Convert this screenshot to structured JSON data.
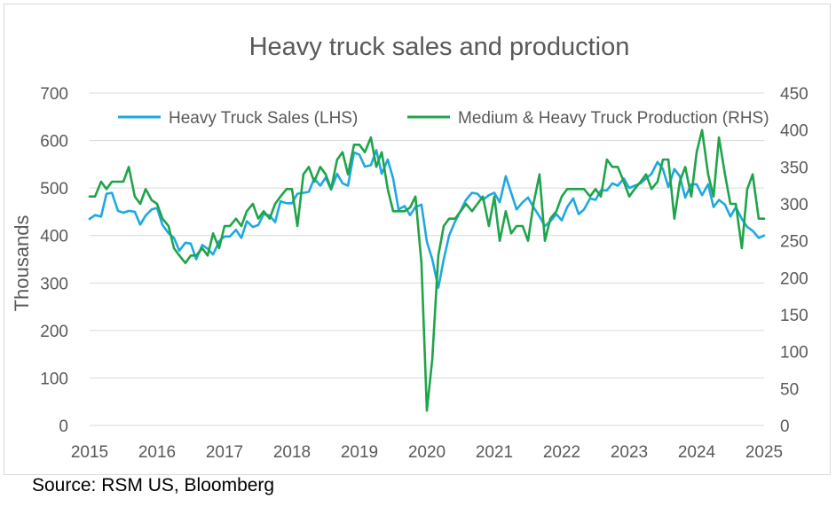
{
  "chart_data": {
    "type": "line",
    "title": "Heavy truck sales and production",
    "ylabel": "Thousands",
    "ylim": [
      0,
      700
    ],
    "y2lim": [
      0,
      450
    ],
    "x_ticks": [
      "2015",
      "2016",
      "2017",
      "2018",
      "2019",
      "2020",
      "2021",
      "2022",
      "2023",
      "2024",
      "2025"
    ],
    "y_ticks": [
      "0",
      "100",
      "200",
      "300",
      "400",
      "500",
      "600",
      "700"
    ],
    "y2_ticks": [
      "0",
      "50",
      "100",
      "150",
      "200",
      "250",
      "300",
      "350",
      "400",
      "450"
    ],
    "grid": true,
    "legend_position": "top",
    "colors": {
      "sales": "#1fa8e0",
      "production": "#1fa44a",
      "grid": "#d9d9d9",
      "text": "#595959"
    },
    "series": [
      {
        "name": "Heavy Truck Sales (LHS)",
        "axis": "left",
        "x": [
          2015.0,
          2015.08,
          2015.17,
          2015.25,
          2015.33,
          2015.42,
          2015.5,
          2015.58,
          2015.67,
          2015.75,
          2015.83,
          2015.92,
          2016.0,
          2016.08,
          2016.17,
          2016.25,
          2016.33,
          2016.42,
          2016.5,
          2016.58,
          2016.67,
          2016.75,
          2016.83,
          2016.92,
          2017.0,
          2017.08,
          2017.17,
          2017.25,
          2017.33,
          2017.42,
          2017.5,
          2017.58,
          2017.67,
          2017.75,
          2017.83,
          2017.92,
          2018.0,
          2018.08,
          2018.17,
          2018.25,
          2018.33,
          2018.42,
          2018.5,
          2018.58,
          2018.67,
          2018.75,
          2018.83,
          2018.92,
          2019.0,
          2019.08,
          2019.17,
          2019.25,
          2019.33,
          2019.42,
          2019.5,
          2019.58,
          2019.67,
          2019.75,
          2019.83,
          2019.92,
          2020.0,
          2020.08,
          2020.17,
          2020.25,
          2020.33,
          2020.42,
          2020.5,
          2020.58,
          2020.67,
          2020.75,
          2020.83,
          2020.92,
          2021.0,
          2021.08,
          2021.17,
          2021.25,
          2021.33,
          2021.42,
          2021.5,
          2021.58,
          2021.67,
          2021.75,
          2021.83,
          2021.92,
          2022.0,
          2022.08,
          2022.17,
          2022.25,
          2022.33,
          2022.42,
          2022.5,
          2022.58,
          2022.67,
          2022.75,
          2022.83,
          2022.92,
          2023.0,
          2023.08,
          2023.17,
          2023.25,
          2023.33,
          2023.42,
          2023.5,
          2023.58,
          2023.67,
          2023.75,
          2023.83,
          2023.92,
          2024.0,
          2024.08,
          2024.17,
          2024.25,
          2024.33,
          2024.42,
          2024.5,
          2024.58,
          2024.67,
          2024.75,
          2024.83,
          2024.92,
          2025.0
        ],
        "values": [
          435,
          443,
          440,
          488,
          490,
          452,
          448,
          452,
          450,
          423,
          442,
          455,
          458,
          422,
          405,
          395,
          368,
          385,
          383,
          350,
          380,
          372,
          360,
          388,
          398,
          398,
          412,
          395,
          430,
          418,
          422,
          445,
          442,
          428,
          472,
          468,
          468,
          488,
          490,
          492,
          520,
          505,
          522,
          497,
          530,
          510,
          505,
          575,
          570,
          545,
          548,
          580,
          530,
          560,
          520,
          455,
          462,
          443,
          460,
          465,
          387,
          350,
          290,
          350,
          400,
          430,
          452,
          475,
          490,
          488,
          475,
          485,
          490,
          470,
          525,
          490,
          455,
          470,
          480,
          460,
          440,
          420,
          430,
          445,
          432,
          460,
          478,
          445,
          455,
          478,
          475,
          495,
          495,
          510,
          505,
          520,
          500,
          505,
          510,
          520,
          530,
          555,
          540,
          502,
          540,
          525,
          480,
          508,
          508,
          485,
          508,
          460,
          475,
          465,
          440,
          460,
          435,
          418,
          410,
          395,
          400
        ]
      },
      {
        "name": "Medium & Heavy Truck Production (RHS)",
        "axis": "right",
        "x": [
          2015.0,
          2015.08,
          2015.17,
          2015.25,
          2015.33,
          2015.42,
          2015.5,
          2015.58,
          2015.67,
          2015.75,
          2015.83,
          2015.92,
          2016.0,
          2016.08,
          2016.17,
          2016.25,
          2016.33,
          2016.42,
          2016.5,
          2016.58,
          2016.67,
          2016.75,
          2016.83,
          2016.92,
          2017.0,
          2017.08,
          2017.17,
          2017.25,
          2017.33,
          2017.42,
          2017.5,
          2017.58,
          2017.67,
          2017.75,
          2017.83,
          2017.92,
          2018.0,
          2018.08,
          2018.17,
          2018.25,
          2018.33,
          2018.42,
          2018.5,
          2018.58,
          2018.67,
          2018.75,
          2018.83,
          2018.92,
          2019.0,
          2019.08,
          2019.17,
          2019.25,
          2019.33,
          2019.42,
          2019.5,
          2019.58,
          2019.67,
          2019.75,
          2019.83,
          2019.92,
          2020.0,
          2020.08,
          2020.17,
          2020.25,
          2020.33,
          2020.42,
          2020.5,
          2020.58,
          2020.67,
          2020.75,
          2020.83,
          2020.92,
          2021.0,
          2021.08,
          2021.17,
          2021.25,
          2021.33,
          2021.42,
          2021.5,
          2021.58,
          2021.67,
          2021.75,
          2021.83,
          2021.92,
          2022.0,
          2022.08,
          2022.17,
          2022.25,
          2022.33,
          2022.42,
          2022.5,
          2022.58,
          2022.67,
          2022.75,
          2022.83,
          2022.92,
          2023.0,
          2023.08,
          2023.17,
          2023.25,
          2023.33,
          2023.42,
          2023.5,
          2023.58,
          2023.67,
          2023.75,
          2023.83,
          2023.92,
          2024.0,
          2024.08,
          2024.17,
          2024.25,
          2024.33,
          2024.42,
          2024.5,
          2024.58,
          2024.67,
          2024.75,
          2024.83,
          2024.92,
          2025.0
        ],
        "values": [
          310,
          310,
          330,
          320,
          330,
          330,
          330,
          350,
          310,
          300,
          320,
          305,
          300,
          280,
          270,
          240,
          230,
          220,
          230,
          230,
          240,
          230,
          260,
          240,
          270,
          270,
          280,
          270,
          290,
          300,
          280,
          290,
          280,
          300,
          310,
          320,
          320,
          270,
          340,
          350,
          330,
          350,
          340,
          320,
          360,
          370,
          340,
          380,
          380,
          370,
          390,
          350,
          370,
          320,
          290,
          290,
          290,
          295,
          310,
          220,
          20,
          90,
          230,
          270,
          280,
          280,
          290,
          300,
          290,
          300,
          310,
          270,
          310,
          250,
          290,
          260,
          270,
          270,
          250,
          300,
          340,
          250,
          280,
          290,
          310,
          320,
          320,
          320,
          320,
          310,
          320,
          310,
          360,
          350,
          350,
          330,
          310,
          320,
          330,
          340,
          320,
          330,
          360,
          360,
          280,
          330,
          350,
          310,
          370,
          400,
          340,
          310,
          390,
          340,
          300,
          300,
          240,
          320,
          340,
          280,
          280
        ]
      }
    ]
  },
  "source": "Source: RSM US, Bloomberg"
}
